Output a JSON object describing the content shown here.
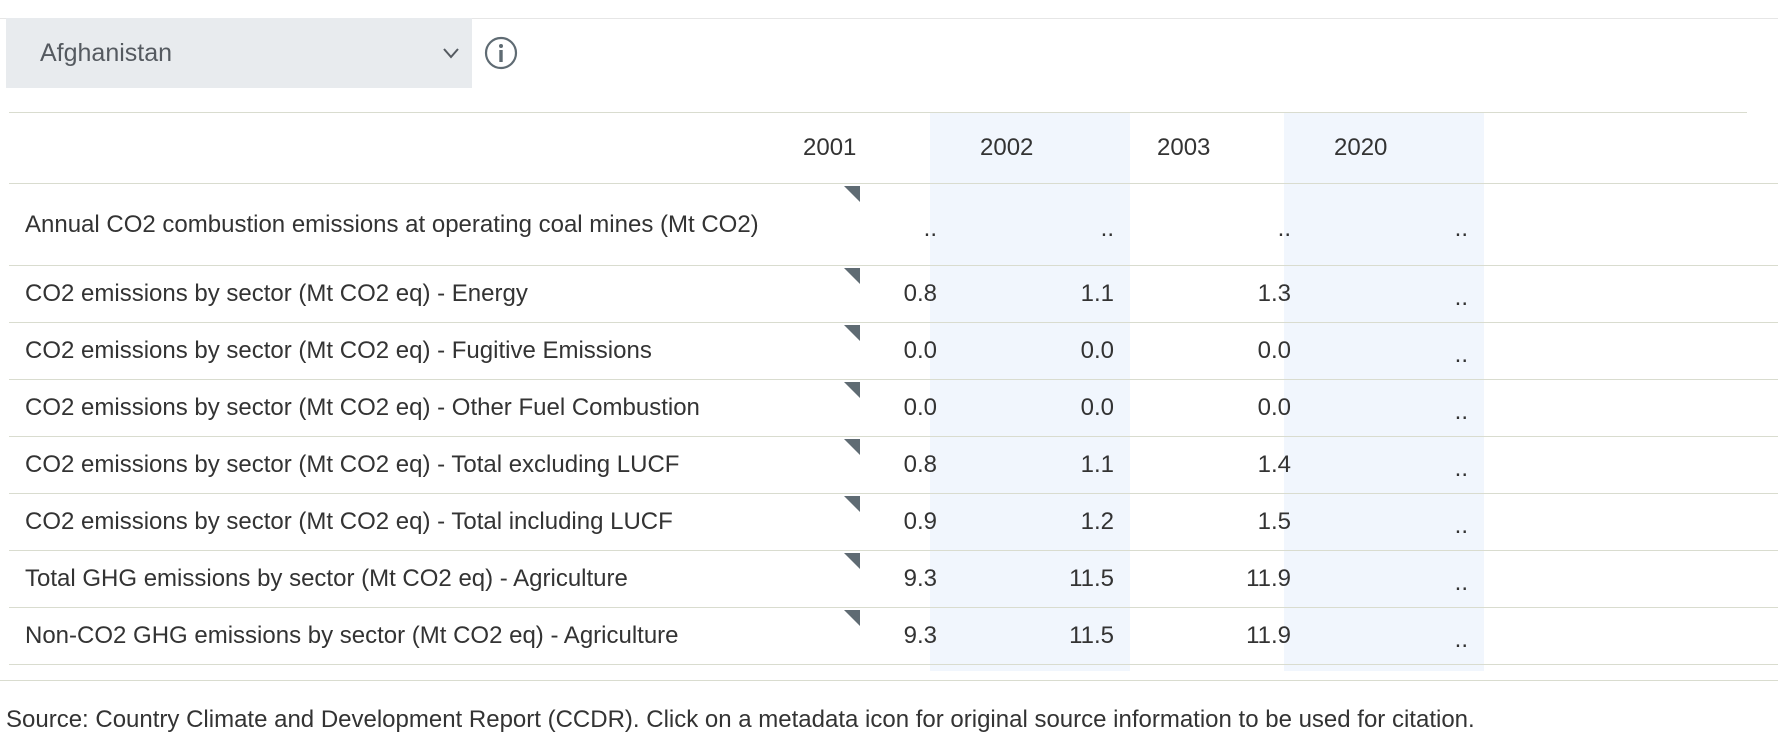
{
  "controls": {
    "country_selected": "Afghanistan",
    "chevron_icon": "chevron-down-icon",
    "info_icon": "info-circle-icon"
  },
  "table": {
    "years": [
      "2001",
      "2002",
      "2003",
      "2020"
    ],
    "shaded_columns": [
      "2002",
      "2020"
    ],
    "shade_color": "#f1f6fd",
    "rows": [
      {
        "label": "Annual CO2 combustion emissions at operating coal mines (Mt CO2)",
        "values": [
          "..",
          "..",
          "..",
          ".."
        ]
      },
      {
        "label": "CO2 emissions by sector (Mt CO2 eq) - Energy",
        "values": [
          "0.8",
          "1.1",
          "1.3",
          ".."
        ]
      },
      {
        "label": "CO2 emissions by sector (Mt CO2 eq) - Fugitive Emissions",
        "values": [
          "0.0",
          "0.0",
          "0.0",
          ".."
        ]
      },
      {
        "label": "CO2 emissions by sector (Mt CO2 eq) - Other Fuel Combustion",
        "values": [
          "0.0",
          "0.0",
          "0.0",
          ".."
        ]
      },
      {
        "label": "CO2 emissions by sector (Mt CO2 eq) - Total excluding LUCF",
        "values": [
          "0.8",
          "1.1",
          "1.4",
          ".."
        ]
      },
      {
        "label": "CO2 emissions by sector (Mt CO2 eq) - Total including LUCF",
        "values": [
          "0.9",
          "1.2",
          "1.5",
          ".."
        ]
      },
      {
        "label": "Total GHG emissions by sector (Mt CO2 eq) - Agriculture",
        "values": [
          "9.3",
          "11.5",
          "11.9",
          ".."
        ]
      },
      {
        "label": "Non-CO2 GHG emissions by sector (Mt CO2 eq) - Agriculture",
        "values": [
          "9.3",
          "11.5",
          "11.9",
          ".."
        ]
      }
    ]
  },
  "footer": {
    "source_text": "Source: Country Climate and Development Report (CCDR). Click on a metadata icon for original source information to be used for citation."
  }
}
